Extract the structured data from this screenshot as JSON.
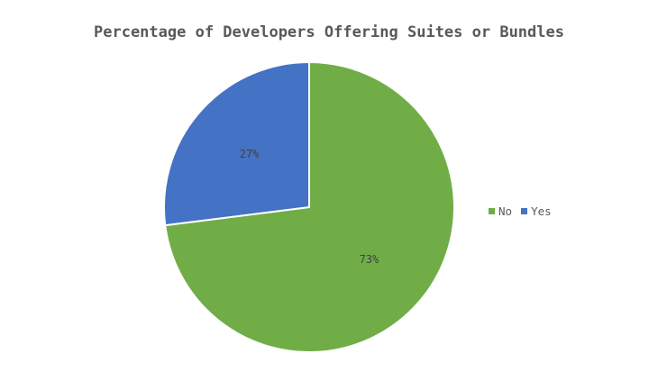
{
  "chart_data": {
    "type": "pie",
    "title": "Percentage of Developers Offering Suites or Bundles",
    "categories": [
      "No",
      "Yes"
    ],
    "values": [
      73,
      27
    ],
    "data_labels": [
      "73%",
      "27%"
    ],
    "colors": [
      "#70AD47",
      "#4472C4"
    ],
    "start_category": "Yes",
    "legend_position": "right"
  }
}
